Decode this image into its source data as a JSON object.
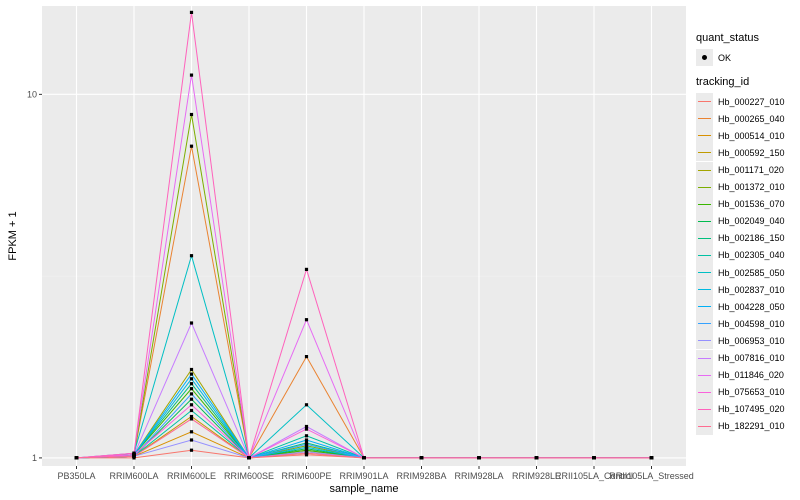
{
  "chart_data": {
    "type": "line",
    "xlabel": "sample_name",
    "ylabel": "FPKM + 1",
    "y_scale": "log10",
    "ylim": [
      0.95,
      17.5
    ],
    "y_ticks": [
      {
        "value": 1,
        "label": "1"
      },
      {
        "value": 10,
        "label": "10"
      }
    ],
    "grid": true,
    "legend_position": "right",
    "categories": [
      "PB350LA",
      "RRIM600LA",
      "RRIM600LE",
      "RRIM600SE",
      "RRIM600PE",
      "RRIM901LA",
      "RRIM928BA",
      "RRIM928LA",
      "RRIM928LE",
      "RRII105LA_Control",
      "RRII105LA_Stressed"
    ],
    "point_legend": {
      "title": "quant_status",
      "label": "OK"
    },
    "series_legend_title": "tracking_id",
    "series": [
      {
        "name": "Hb_000227_010",
        "color": "#F8766D",
        "values": [
          1,
          1,
          1.05,
          1,
          1.02,
          1,
          1,
          1,
          1,
          1,
          1
        ]
      },
      {
        "name": "Hb_000265_040",
        "color": "#EA8331",
        "values": [
          1,
          1.02,
          7.2,
          1,
          1.9,
          1,
          1,
          1,
          1,
          1,
          1
        ]
      },
      {
        "name": "Hb_000514_010",
        "color": "#D89000",
        "values": [
          1,
          1.01,
          1.18,
          1,
          1.03,
          1,
          1,
          1,
          1,
          1,
          1
        ]
      },
      {
        "name": "Hb_000592_150",
        "color": "#C09B00",
        "values": [
          1,
          1.01,
          1.3,
          1,
          1.04,
          1,
          1,
          1,
          1,
          1,
          1
        ]
      },
      {
        "name": "Hb_001171_020",
        "color": "#A3A500",
        "values": [
          1,
          1.02,
          1.75,
          1,
          1.05,
          1,
          1,
          1,
          1,
          1,
          1
        ]
      },
      {
        "name": "Hb_001372_010",
        "color": "#7CAE00",
        "values": [
          1,
          1.02,
          8.8,
          1,
          1.08,
          1,
          1,
          1,
          1,
          1,
          1
        ]
      },
      {
        "name": "Hb_001536_070",
        "color": "#39B600",
        "values": [
          1,
          1.02,
          1.55,
          1,
          1.05,
          1,
          1,
          1,
          1,
          1,
          1
        ]
      },
      {
        "name": "Hb_002049_040",
        "color": "#00BB4E",
        "values": [
          1,
          1.01,
          1.45,
          1,
          1.06,
          1,
          1,
          1,
          1,
          1,
          1
        ]
      },
      {
        "name": "Hb_002186_150",
        "color": "#00BF7D",
        "values": [
          1,
          1.02,
          1.6,
          1,
          1.1,
          1,
          1,
          1,
          1,
          1,
          1
        ]
      },
      {
        "name": "Hb_002305_040",
        "color": "#00C1A3",
        "values": [
          1,
          1.01,
          1.35,
          1,
          1.15,
          1,
          1,
          1,
          1,
          1,
          1
        ]
      },
      {
        "name": "Hb_002585_050",
        "color": "#00BFC4",
        "values": [
          1,
          1.03,
          3.6,
          1,
          1.4,
          1,
          1,
          1,
          1,
          1,
          1
        ]
      },
      {
        "name": "Hb_002837_010",
        "color": "#00BAE0",
        "values": [
          1,
          1.02,
          1.65,
          1,
          1.07,
          1,
          1,
          1,
          1,
          1,
          1
        ]
      },
      {
        "name": "Hb_004228_050",
        "color": "#00B0F6",
        "values": [
          1,
          1.02,
          1.7,
          1,
          1.12,
          1,
          1,
          1,
          1,
          1,
          1
        ]
      },
      {
        "name": "Hb_004598_010",
        "color": "#35A2FF",
        "values": [
          1,
          1.01,
          1.5,
          1,
          1.09,
          1,
          1,
          1,
          1,
          1,
          1
        ]
      },
      {
        "name": "Hb_006953_010",
        "color": "#9590FF",
        "values": [
          1,
          1.01,
          1.12,
          1,
          1.04,
          1,
          1,
          1,
          1,
          1,
          1
        ]
      },
      {
        "name": "Hb_007816_010",
        "color": "#C77CFF",
        "values": [
          1,
          1.02,
          2.35,
          1,
          1.22,
          1,
          1,
          1,
          1,
          1,
          1
        ]
      },
      {
        "name": "Hb_011846_020",
        "color": "#E76BF3",
        "values": [
          1,
          1.03,
          11.3,
          1,
          2.4,
          1,
          1,
          1,
          1,
          1,
          1
        ]
      },
      {
        "name": "Hb_075653_010",
        "color": "#FA62DB",
        "values": [
          1,
          1.02,
          1.4,
          1,
          1.2,
          1,
          1,
          1,
          1,
          1,
          1
        ]
      },
      {
        "name": "Hb_107495_020",
        "color": "#FF62BC",
        "values": [
          1,
          1.03,
          16.8,
          1,
          3.3,
          1,
          1,
          1,
          1,
          1,
          1
        ]
      },
      {
        "name": "Hb_182291_010",
        "color": "#FF6C91",
        "values": [
          1,
          1.01,
          1.28,
          1,
          1.03,
          1,
          1,
          1,
          1,
          1,
          1
        ]
      }
    ]
  }
}
